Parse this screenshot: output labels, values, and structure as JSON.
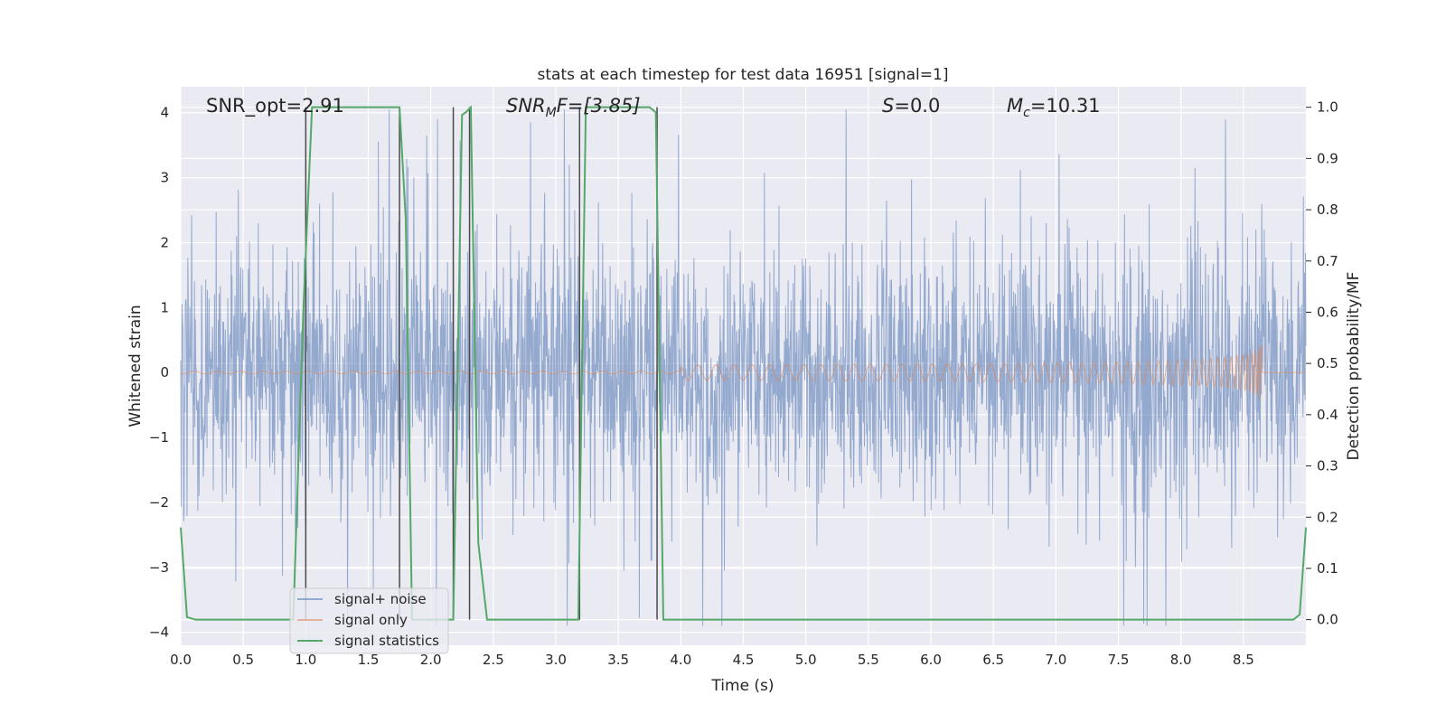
{
  "chart_data": {
    "type": "line",
    "title": "stats at each timestep for test data 16951 [signal=1]",
    "xlabel": "Time (s)",
    "ylabel": "Whitened strain",
    "ylabel_right": "Detection probability/MF",
    "xlim": [
      0.0,
      9.0
    ],
    "ylim": [
      -4.2,
      4.4
    ],
    "ylim_right": [
      -0.05,
      1.04
    ],
    "x_ticks": [
      "0.0",
      "0.5",
      "1.0",
      "1.5",
      "2.0",
      "2.5",
      "3.0",
      "3.5",
      "4.0",
      "4.5",
      "5.0",
      "5.5",
      "6.0",
      "6.5",
      "7.0",
      "7.5",
      "8.0",
      "8.5"
    ],
    "y_ticks": [
      "4",
      "3",
      "2",
      "1",
      "0",
      "−1",
      "−2",
      "−3",
      "−4"
    ],
    "y_tick_values": [
      4,
      3,
      2,
      1,
      0,
      -1,
      -2,
      -3,
      -4
    ],
    "y_right_ticks": [
      "1.0",
      "0.9",
      "0.8",
      "0.7",
      "0.6",
      "0.5",
      "0.4",
      "0.3",
      "0.2",
      "0.1",
      "0.0"
    ],
    "y_right_tick_values": [
      1.0,
      0.9,
      0.8,
      0.7,
      0.6,
      0.5,
      0.4,
      0.3,
      0.2,
      0.1,
      0.0
    ],
    "grid": true,
    "legend_position": "lower-left",
    "annotations": {
      "snr_opt": "SNR_opt=2.91",
      "snr_mf_main": "SNR",
      "snr_mf_sub": "M",
      "snr_mf_rest": "F=[3.85]",
      "s_main": "S",
      "s_rest": "=0.0",
      "mc_main": "M",
      "mc_sub": "c",
      "mc_rest": "=10.31"
    },
    "series": [
      {
        "name": "signal+ noise",
        "color": "#4c72b0",
        "kind": "noise",
        "amplitude_envelope": 1.7,
        "peak_values": [
          3.95,
          -3.85,
          3.55,
          -3.65
        ]
      },
      {
        "name": "signal only",
        "color": "#dd8452",
        "kind": "chirp",
        "x_start": 4.0,
        "x_end": 8.65,
        "max_amplitude": 0.55
      },
      {
        "name": "signal statistics",
        "color": "#55a868",
        "axis": "right",
        "x": [
          0.0,
          0.05,
          0.12,
          0.9,
          0.98,
          1.05,
          1.1,
          1.75,
          1.8,
          1.85,
          1.9,
          2.18,
          2.25,
          2.28,
          2.32,
          2.38,
          2.45,
          3.18,
          3.24,
          3.3,
          3.75,
          3.8,
          3.86,
          3.93,
          8.9,
          8.95,
          9.0
        ],
        "values": [
          0.18,
          0.005,
          0.0,
          0.0,
          0.6,
          1.0,
          1.0,
          1.0,
          0.78,
          0.0,
          0.0,
          0.0,
          0.985,
          0.99,
          1.0,
          0.15,
          0.0,
          0.0,
          1.0,
          1.0,
          1.0,
          0.99,
          0.0,
          0.0,
          0.0,
          0.01,
          0.18
        ]
      }
    ],
    "vlines_x": [
      1.0,
      1.75,
      2.18,
      2.31,
      3.19,
      3.81
    ]
  }
}
